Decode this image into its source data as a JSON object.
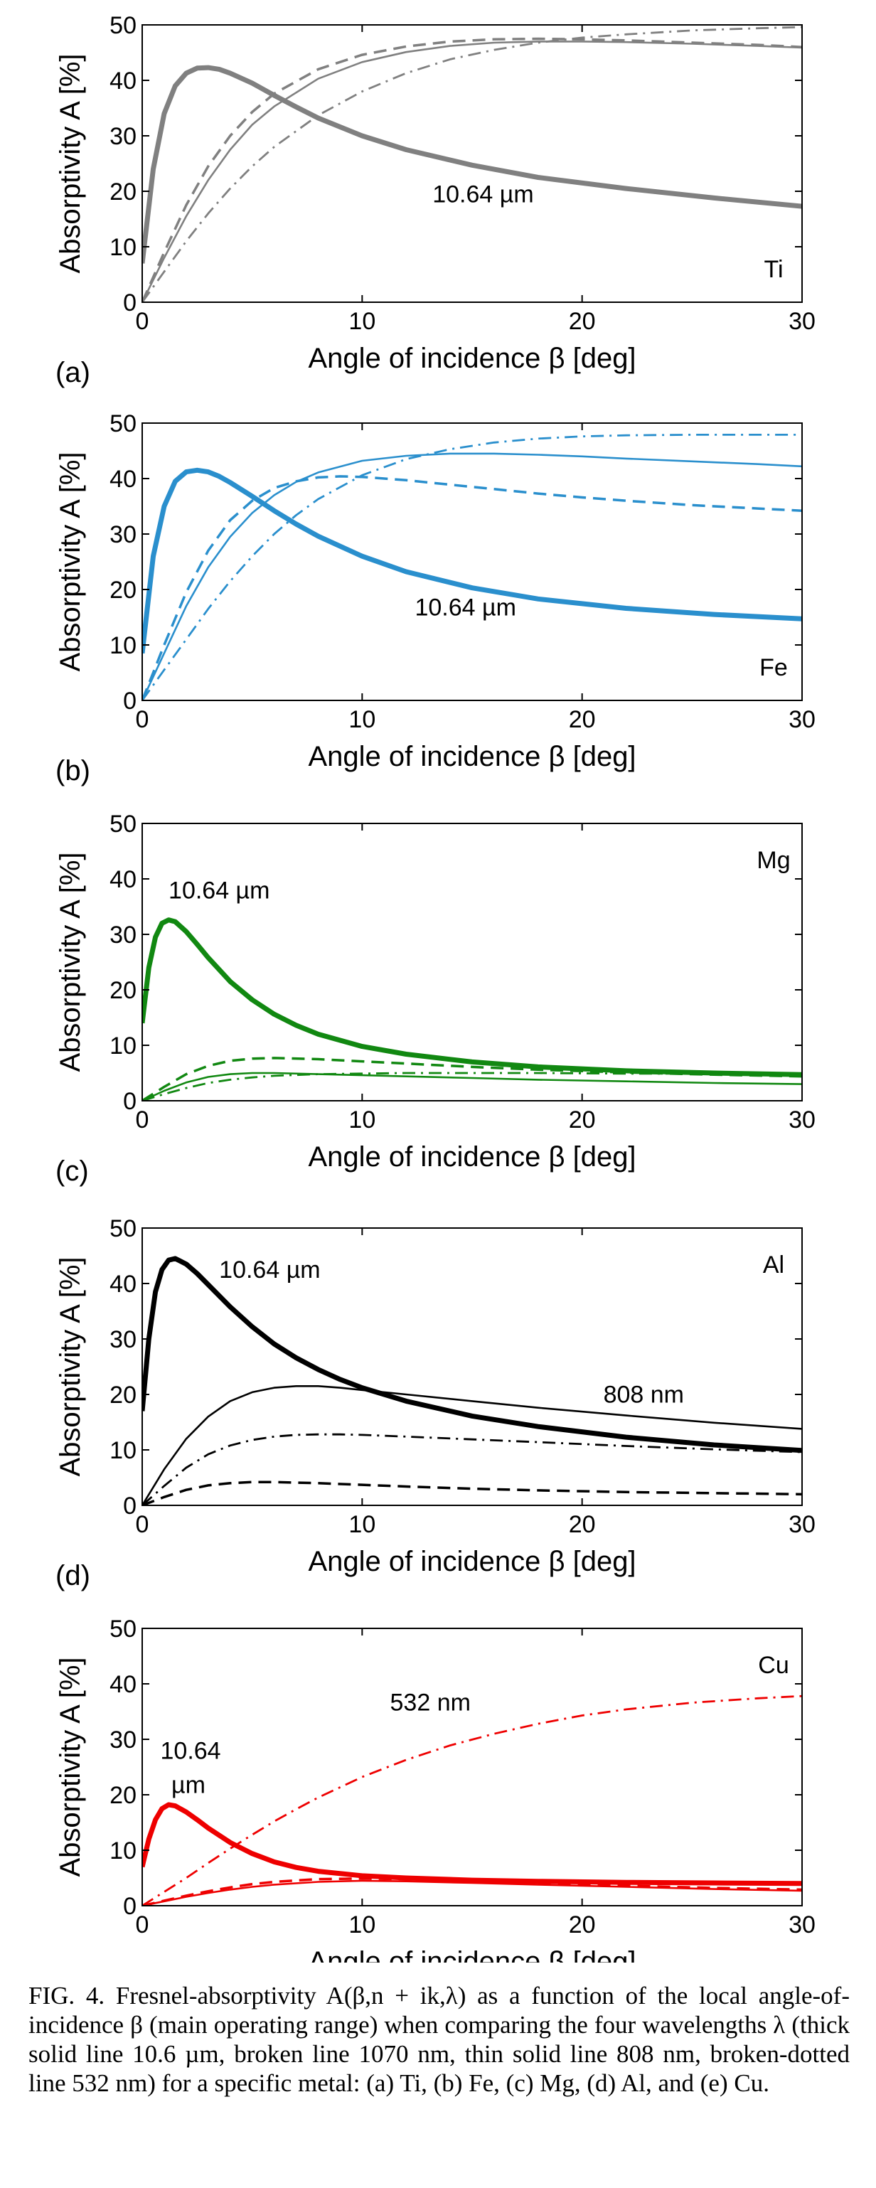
{
  "chart_data": [
    {
      "type": "line",
      "panel": "(a)",
      "metal": "Ti",
      "color": "#808080",
      "xlabel": "Angle of incidence β  [deg]",
      "ylabel": "Absorptivity A [%]",
      "xlim": [
        0,
        30
      ],
      "ylim": [
        0,
        50
      ],
      "xticks": [
        0,
        10,
        20,
        30
      ],
      "yticks": [
        0,
        10,
        20,
        30,
        40,
        50
      ],
      "annotations": [
        {
          "text": "10.64 µm",
          "x": 15.5,
          "y": 18
        }
      ],
      "series": [
        {
          "name": "10.6 µm",
          "style": "thick-solid",
          "x": [
            0,
            0.5,
            1,
            1.5,
            2,
            2.5,
            3,
            3.5,
            4,
            5,
            6,
            7,
            8,
            10,
            12,
            15,
            18,
            22,
            26,
            30
          ],
          "y": [
            7,
            24,
            34,
            39,
            41.3,
            42.2,
            42.3,
            42,
            41.3,
            39.5,
            37.3,
            35.2,
            33.2,
            30,
            27.5,
            24.7,
            22.5,
            20.5,
            18.8,
            17.3
          ]
        },
        {
          "name": "1070 nm",
          "style": "dashed",
          "x": [
            0,
            1,
            2,
            3,
            4,
            5,
            6,
            8,
            10,
            12,
            14,
            16,
            18,
            20,
            22,
            25,
            28,
            30
          ],
          "y": [
            0,
            9,
            17.5,
            24.5,
            30,
            34.3,
            37.6,
            42,
            44.6,
            46.1,
            47,
            47.4,
            47.5,
            47.4,
            47.2,
            46.8,
            46.4,
            46
          ]
        },
        {
          "name": "808 nm",
          "style": "thin-solid",
          "x": [
            0,
            1,
            2,
            3,
            4,
            5,
            6,
            8,
            10,
            12,
            14,
            16,
            18,
            20,
            22,
            25,
            28,
            30
          ],
          "y": [
            0,
            8,
            15.5,
            22,
            27.5,
            32,
            35.3,
            40.3,
            43.3,
            45.1,
            46.2,
            46.8,
            47,
            47,
            46.9,
            46.6,
            46.2,
            45.9
          ]
        },
        {
          "name": "532 nm",
          "style": "dash-dot",
          "x": [
            0,
            1,
            2,
            3,
            4,
            5,
            6,
            8,
            10,
            12,
            14,
            16,
            18,
            20,
            22,
            25,
            28,
            30
          ],
          "y": [
            0,
            5.5,
            11,
            16,
            20.5,
            24.5,
            28,
            33.7,
            38,
            41.3,
            43.8,
            45.5,
            46.8,
            47.7,
            48.3,
            49,
            49.4,
            49.6
          ]
        }
      ]
    },
    {
      "type": "line",
      "panel": "(b)",
      "metal": "Fe",
      "color": "#2a8fcd",
      "xlabel": "Angle of incidence β  [deg]",
      "ylabel": "Absorptivity A [%]",
      "xlim": [
        0,
        30
      ],
      "ylim": [
        0,
        50
      ],
      "xticks": [
        0,
        10,
        20,
        30
      ],
      "yticks": [
        0,
        10,
        20,
        30,
        40,
        50
      ],
      "annotations": [
        {
          "text": "10.64 µm",
          "x": 14.7,
          "y": 15.3
        }
      ],
      "series": [
        {
          "name": "10.6 µm",
          "style": "thick-solid",
          "x": [
            0,
            0.5,
            1,
            1.5,
            2,
            2.5,
            3,
            3.5,
            4,
            5,
            6,
            7,
            8,
            10,
            12,
            15,
            18,
            22,
            26,
            30
          ],
          "y": [
            8.5,
            26,
            35,
            39.5,
            41.2,
            41.5,
            41.2,
            40.4,
            39.3,
            36.8,
            34.2,
            31.8,
            29.6,
            26,
            23.2,
            20.3,
            18.3,
            16.6,
            15.5,
            14.7
          ]
        },
        {
          "name": "1070 nm",
          "style": "dashed",
          "x": [
            0,
            1,
            2,
            3,
            4,
            5,
            6,
            7,
            8,
            9,
            10,
            12,
            14,
            16,
            18,
            20,
            22,
            25,
            28,
            30
          ],
          "y": [
            0,
            10,
            19.5,
            27,
            32.5,
            36,
            38.3,
            39.5,
            40.2,
            40.4,
            40.3,
            39.7,
            38.9,
            38.1,
            37.3,
            36.6,
            36,
            35.2,
            34.6,
            34.2
          ]
        },
        {
          "name": "808 nm",
          "style": "thin-solid",
          "x": [
            0,
            1,
            2,
            3,
            4,
            5,
            6,
            7,
            8,
            10,
            12,
            14,
            16,
            18,
            20,
            22,
            25,
            28,
            30
          ],
          "y": [
            0,
            8.5,
            17,
            24,
            29.5,
            33.8,
            37,
            39.4,
            41.1,
            43.2,
            44.1,
            44.5,
            44.5,
            44.3,
            44,
            43.6,
            43.1,
            42.6,
            42.2
          ]
        },
        {
          "name": "532 nm",
          "style": "dash-dot",
          "x": [
            0,
            1,
            2,
            3,
            4,
            5,
            6,
            7,
            8,
            10,
            12,
            14,
            16,
            18,
            20,
            22,
            25,
            28,
            30
          ],
          "y": [
            0,
            5.5,
            11,
            16.5,
            21.5,
            26,
            30,
            33.4,
            36.3,
            40.6,
            43.5,
            45.3,
            46.5,
            47.2,
            47.6,
            47.8,
            47.9,
            47.9,
            47.9
          ]
        }
      ]
    },
    {
      "type": "line",
      "panel": "(c)",
      "metal": "Mg",
      "color": "#118811",
      "xlabel": "Angle of incidence β  [deg]",
      "ylabel": "Absorptivity A [%]",
      "xlim": [
        0,
        30
      ],
      "ylim": [
        0,
        50
      ],
      "xticks": [
        0,
        10,
        20,
        30
      ],
      "yticks": [
        0,
        10,
        20,
        30,
        40,
        50
      ],
      "annotations": [
        {
          "text": "10.64 µm",
          "x": 3.5,
          "y": 36.5
        }
      ],
      "series": [
        {
          "name": "10.6 µm",
          "style": "thick-solid",
          "x": [
            0,
            0.3,
            0.6,
            0.9,
            1.2,
            1.5,
            2,
            2.5,
            3,
            4,
            5,
            6,
            7,
            8,
            10,
            12,
            15,
            18,
            22,
            26,
            30
          ],
          "y": [
            14,
            24,
            29.5,
            32,
            32.6,
            32.3,
            30.5,
            28.2,
            25.8,
            21.5,
            18.2,
            15.6,
            13.6,
            12,
            9.8,
            8.4,
            7,
            6.1,
            5.4,
            5,
            4.7
          ]
        },
        {
          "name": "1070 nm",
          "style": "dashed",
          "x": [
            0,
            1,
            2,
            3,
            4,
            5,
            6,
            8,
            10,
            12,
            15,
            18,
            22,
            26,
            30
          ],
          "y": [
            0,
            2.5,
            4.8,
            6.3,
            7.2,
            7.6,
            7.7,
            7.5,
            7.1,
            6.7,
            6.1,
            5.6,
            5.1,
            4.7,
            4.4
          ]
        },
        {
          "name": "808 nm",
          "style": "thin-solid",
          "x": [
            0,
            1,
            2,
            3,
            4,
            5,
            6,
            8,
            10,
            12,
            15,
            18,
            22,
            26,
            30
          ],
          "y": [
            0,
            1.8,
            3.3,
            4.3,
            4.8,
            5,
            5,
            4.8,
            4.6,
            4.4,
            4.1,
            3.8,
            3.5,
            3.2,
            3
          ]
        },
        {
          "name": "532 nm",
          "style": "dash-dot",
          "x": [
            0,
            1,
            2,
            3,
            4,
            5,
            6,
            8,
            10,
            12,
            15,
            18,
            22,
            26,
            30
          ],
          "y": [
            0,
            1.2,
            2.3,
            3.2,
            3.8,
            4.2,
            4.5,
            4.8,
            4.9,
            5,
            5,
            5,
            4.9,
            4.9,
            4.8
          ]
        }
      ]
    },
    {
      "type": "line",
      "panel": "(d)",
      "metal": "Al",
      "color": "#000000",
      "xlabel": "Angle of incidence β  [deg]",
      "ylabel": "Absorptivity A [%]",
      "xlim": [
        0,
        30
      ],
      "ylim": [
        0,
        50
      ],
      "xticks": [
        0,
        10,
        20,
        30
      ],
      "yticks": [
        0,
        10,
        20,
        30,
        40,
        50
      ],
      "annotations": [
        {
          "text": "10.64 µm",
          "x": 5.8,
          "y": 41
        },
        {
          "text": "808 nm",
          "x": 22.8,
          "y": 18.5
        }
      ],
      "series": [
        {
          "name": "10.6 µm",
          "style": "thick-solid",
          "x": [
            0,
            0.3,
            0.6,
            0.9,
            1.2,
            1.5,
            2,
            2.5,
            3,
            4,
            5,
            6,
            7,
            8,
            9,
            10,
            12,
            15,
            18,
            22,
            26,
            30
          ],
          "y": [
            17,
            30,
            38.5,
            42.5,
            44.2,
            44.5,
            43.5,
            41.8,
            39.8,
            35.8,
            32.2,
            29.1,
            26.6,
            24.5,
            22.7,
            21.2,
            18.8,
            16.1,
            14.2,
            12.3,
            10.9,
            9.9
          ]
        },
        {
          "name": "1070 nm",
          "style": "dashed",
          "x": [
            0,
            1,
            2,
            3,
            4,
            5,
            6,
            8,
            10,
            12,
            15,
            18,
            22,
            26,
            30
          ],
          "y": [
            0,
            1.5,
            2.8,
            3.6,
            4,
            4.2,
            4.2,
            4,
            3.7,
            3.4,
            3,
            2.7,
            2.4,
            2.2,
            2
          ]
        },
        {
          "name": "808 nm",
          "style": "thin-solid",
          "x": [
            0,
            1,
            2,
            3,
            4,
            5,
            6,
            7,
            8,
            9,
            10,
            12,
            15,
            18,
            22,
            26,
            30
          ],
          "y": [
            0,
            6.5,
            12,
            16,
            18.8,
            20.4,
            21.2,
            21.5,
            21.5,
            21.2,
            20.8,
            20,
            18.8,
            17.6,
            16.2,
            14.9,
            13.8
          ]
        },
        {
          "name": "532 nm",
          "style": "dash-dot",
          "x": [
            0,
            1,
            2,
            3,
            4,
            5,
            6,
            7,
            8,
            9,
            10,
            12,
            15,
            18,
            22,
            26,
            30
          ],
          "y": [
            0,
            3.5,
            6.8,
            9.2,
            10.8,
            11.8,
            12.4,
            12.7,
            12.8,
            12.8,
            12.7,
            12.4,
            11.9,
            11.4,
            10.7,
            10.1,
            9.6
          ]
        }
      ]
    },
    {
      "type": "line",
      "panel": "(e)",
      "metal": "Cu",
      "color": "#ee0000",
      "xlabel": "Angle of incidence β  [deg]",
      "ylabel": "Absorptivity A [%]",
      "xlim": [
        0,
        30
      ],
      "ylim": [
        0,
        50
      ],
      "xticks": [
        0,
        10,
        20,
        30
      ],
      "yticks": [
        0,
        10,
        20,
        30,
        40,
        50
      ],
      "annotations": [
        {
          "text": "10.64",
          "x": 2.2,
          "y": 26.5
        },
        {
          "text": "µm",
          "x": 2.1,
          "y": 20.3
        },
        {
          "text": "532 nm",
          "x": 13.1,
          "y": 35.2
        }
      ],
      "series": [
        {
          "name": "10.6 µm",
          "style": "thick-solid",
          "x": [
            0,
            0.3,
            0.6,
            0.9,
            1.2,
            1.5,
            2,
            2.5,
            3,
            4,
            5,
            6,
            7,
            8,
            10,
            12,
            15,
            18,
            22,
            26,
            30
          ],
          "y": [
            7,
            12,
            15.5,
            17.5,
            18.2,
            18,
            16.9,
            15.5,
            14,
            11.4,
            9.4,
            7.9,
            6.9,
            6.2,
            5.4,
            5,
            4.6,
            4.4,
            4.2,
            4.1,
            4
          ]
        },
        {
          "name": "1070 nm",
          "style": "dashed",
          "x": [
            0,
            1,
            2,
            3,
            4,
            5,
            6,
            8,
            10,
            12,
            15,
            18,
            22,
            26,
            30
          ],
          "y": [
            0,
            0.9,
            1.8,
            2.6,
            3.3,
            3.9,
            4.3,
            4.8,
            4.9,
            4.8,
            4.5,
            4.1,
            3.6,
            3.2,
            2.9
          ]
        },
        {
          "name": "808 nm",
          "style": "thin-solid",
          "x": [
            0,
            1,
            2,
            3,
            4,
            5,
            6,
            8,
            10,
            12,
            15,
            18,
            22,
            26,
            30
          ],
          "y": [
            0,
            0.8,
            1.6,
            2.3,
            2.9,
            3.4,
            3.8,
            4.3,
            4.5,
            4.4,
            4.1,
            3.8,
            3.4,
            3,
            2.7
          ]
        },
        {
          "name": "532 nm",
          "style": "dash-dot",
          "x": [
            0,
            1,
            2,
            3,
            4,
            5,
            6,
            7,
            8,
            10,
            12,
            14,
            16,
            18,
            20,
            22,
            25,
            28,
            30
          ],
          "y": [
            0,
            2.5,
            5,
            7.7,
            10.3,
            12.8,
            15.2,
            17.4,
            19.5,
            23.2,
            26.3,
            28.9,
            31,
            32.8,
            34.3,
            35.4,
            36.6,
            37.4,
            37.8
          ]
        }
      ]
    }
  ],
  "caption": "FIG. 4. Fresnel-absorptivity A(β,n + ik,λ) as a function of the local angle-of-incidence β (main operating range) when comparing the four wavelengths λ (thick solid line 10.6 µm, broken line 1070 nm, thin solid line 808 nm, broken-dotted line 532 nm) for a specific metal: (a) Ti, (b) Fe, (c) Mg, (d) Al, and (e) Cu."
}
